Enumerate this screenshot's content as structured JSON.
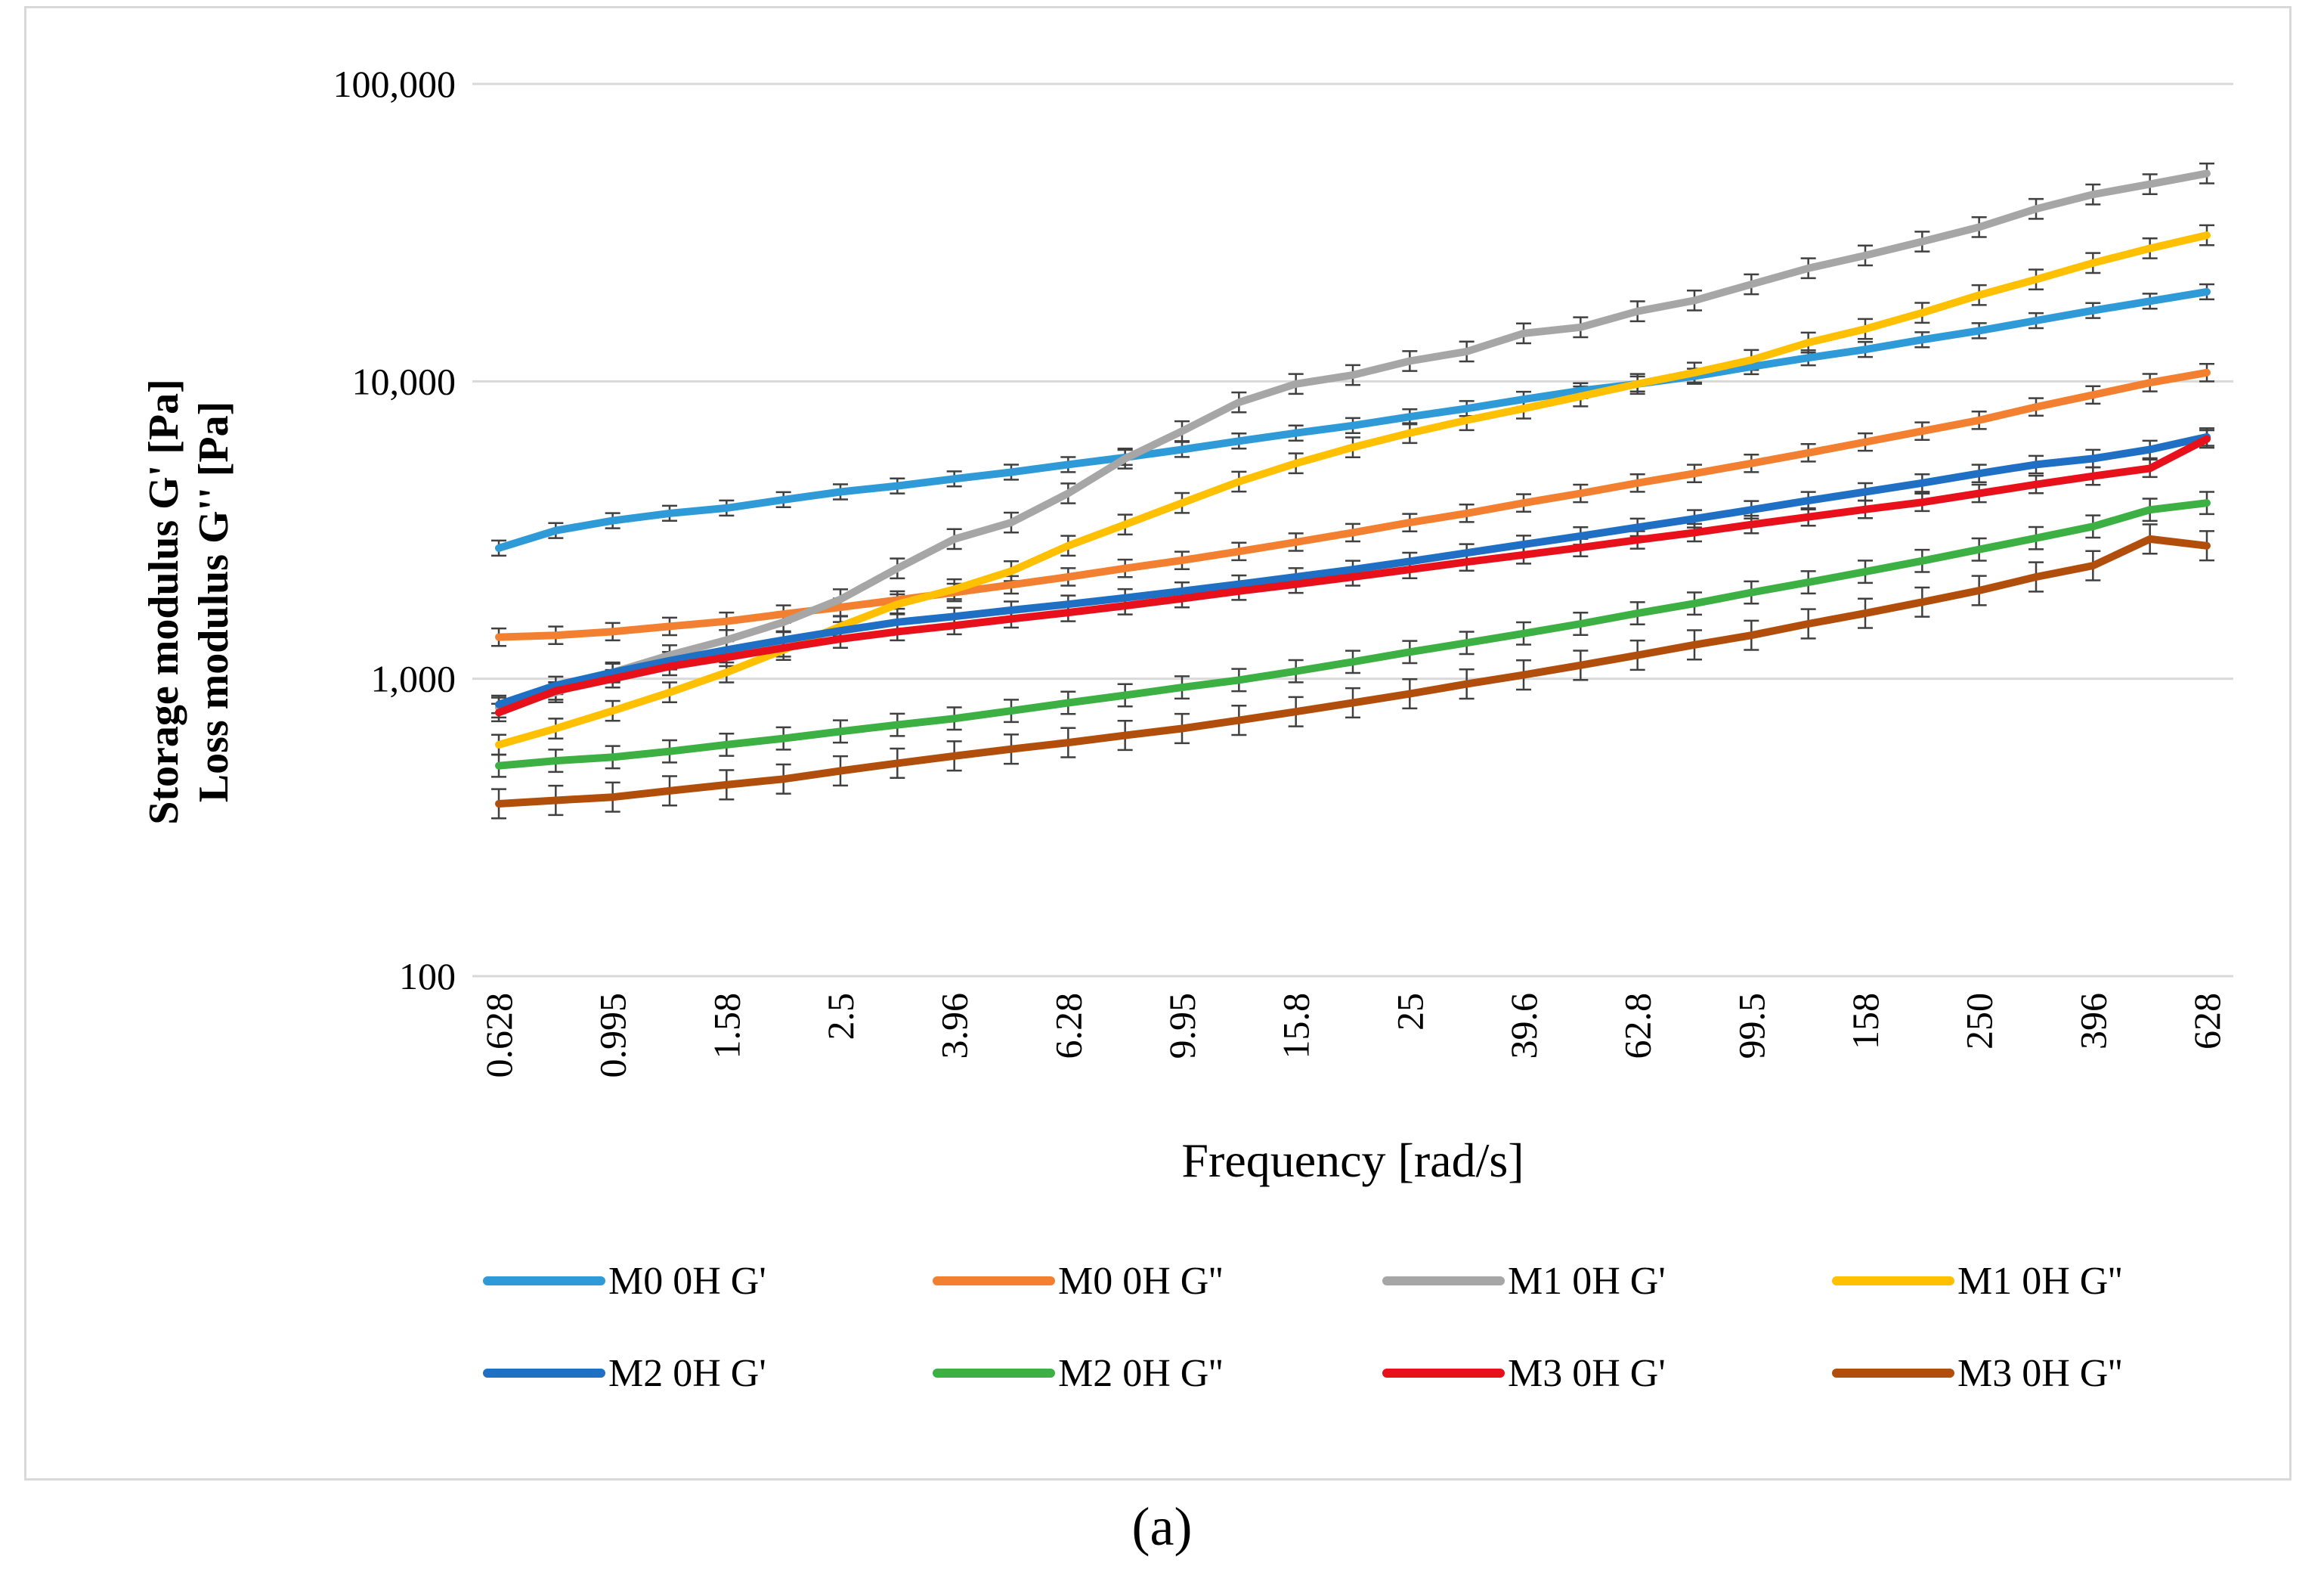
{
  "chart_data": {
    "type": "line",
    "y_scale": "log",
    "ylim": [
      100,
      100000
    ],
    "y_ticks": [
      100,
      1000,
      10000,
      100000
    ],
    "y_tick_labels": [
      "100",
      "1,000",
      "10,000",
      "100,000"
    ],
    "ylabel_lines": [
      "Storage modulus G' [Pa]",
      "Loss modulus G'' [Pa]"
    ],
    "xlabel": "Frequency [rad/s]",
    "categories": [
      "0.628",
      "0.791",
      "0.995",
      "1.25",
      "1.58",
      "1.99",
      "2.5",
      "3.15",
      "3.96",
      "4.99",
      "6.28",
      "7.91",
      "9.95",
      "12.5",
      "15.8",
      "19.9",
      "25",
      "31.5",
      "39.6",
      "49.9",
      "62.8",
      "79.1",
      "99.5",
      "125",
      "158",
      "199",
      "250",
      "315",
      "396",
      "499",
      "628"
    ],
    "x_tick_labels": [
      "0.628",
      "0.995",
      "1.58",
      "2.5",
      "3.96",
      "6.28",
      "9.95",
      "15.8",
      "25",
      "39.6",
      "62.8",
      "99.5",
      "158",
      "250",
      "396",
      "628"
    ],
    "legend_position": "bottom",
    "grid": true,
    "series": [
      {
        "name": "M0 0H G'",
        "color": "#2e9ad8",
        "error": 0.06,
        "values": [
          2750,
          3150,
          3400,
          3600,
          3750,
          4000,
          4250,
          4450,
          4700,
          4950,
          5250,
          5550,
          5900,
          6300,
          6700,
          7100,
          7600,
          8100,
          8700,
          9300,
          9800,
          10400,
          11200,
          12000,
          12800,
          13800,
          14800,
          16000,
          17300,
          18600,
          20000
        ]
      },
      {
        "name": "M0 0H G''",
        "color": "#f28030",
        "error": 0.07,
        "values": [
          1380,
          1400,
          1440,
          1500,
          1560,
          1650,
          1740,
          1840,
          1950,
          2070,
          2200,
          2350,
          2500,
          2680,
          2880,
          3100,
          3350,
          3600,
          3900,
          4200,
          4550,
          4900,
          5300,
          5750,
          6250,
          6800,
          7400,
          8200,
          9000,
          9900,
          10700
        ]
      },
      {
        "name": "M1 0H G'",
        "color": "#a6a6a6",
        "error": 0.08,
        "values": [
          800,
          900,
          1050,
          1200,
          1350,
          1550,
          1850,
          2350,
          2950,
          3350,
          4200,
          5500,
          6800,
          8500,
          9800,
          10500,
          11700,
          12600,
          14500,
          15200,
          17200,
          18700,
          21200,
          24000,
          26500,
          29500,
          33000,
          38000,
          42500,
          46000,
          50000
        ]
      },
      {
        "name": "M1 0H G''",
        "color": "#ffc000",
        "error": 0.08,
        "values": [
          600,
          680,
          780,
          900,
          1050,
          1250,
          1500,
          1780,
          2000,
          2300,
          2800,
          3300,
          3900,
          4600,
          5300,
          6000,
          6700,
          7400,
          8100,
          8900,
          9800,
          10700,
          11800,
          13500,
          15000,
          17000,
          19500,
          22000,
          25000,
          28000,
          31000
        ]
      },
      {
        "name": "M2 0H G'",
        "color": "#1f6fc4",
        "error": 0.07,
        "values": [
          820,
          950,
          1050,
          1150,
          1250,
          1350,
          1450,
          1550,
          1620,
          1700,
          1780,
          1870,
          1970,
          2080,
          2200,
          2330,
          2480,
          2650,
          2830,
          3020,
          3230,
          3450,
          3700,
          3970,
          4250,
          4550,
          4900,
          5250,
          5500,
          5900,
          6500
        ]
      },
      {
        "name": "M2 0H G''",
        "color": "#3cb043",
        "error": 0.09,
        "values": [
          510,
          530,
          545,
          570,
          600,
          630,
          665,
          700,
          735,
          780,
          830,
          880,
          935,
          990,
          1060,
          1140,
          1230,
          1320,
          1420,
          1530,
          1660,
          1790,
          1950,
          2110,
          2290,
          2490,
          2720,
          2970,
          3250,
          3700,
          3900
        ]
      },
      {
        "name": "M3 0H G'",
        "color": "#e8101a",
        "error": 0.07,
        "values": [
          770,
          910,
          1000,
          1100,
          1180,
          1270,
          1360,
          1440,
          1510,
          1590,
          1670,
          1760,
          1860,
          1970,
          2080,
          2200,
          2330,
          2470,
          2610,
          2760,
          2930,
          3100,
          3300,
          3500,
          3710,
          3920,
          4200,
          4500,
          4800,
          5100,
          6400
        ]
      },
      {
        "name": "M3 0H G''",
        "color": "#b24e0c",
        "error": 0.12,
        "values": [
          380,
          390,
          400,
          420,
          440,
          460,
          490,
          520,
          550,
          580,
          610,
          645,
          680,
          725,
          775,
          830,
          890,
          960,
          1030,
          1110,
          1200,
          1300,
          1400,
          1530,
          1660,
          1810,
          1980,
          2200,
          2400,
          2950,
          2800
        ]
      }
    ]
  },
  "caption": "(a)"
}
